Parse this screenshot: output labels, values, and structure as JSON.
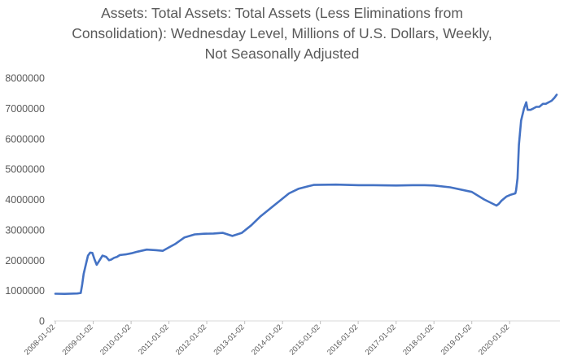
{
  "chart_data": {
    "type": "line",
    "title_lines": [
      "Assets: Total Assets: Total Assets (Less Eliminations from",
      "Consolidation): Wednesday Level, Millions of U.S. Dollars, Weekly,",
      "Not Seasonally Adjusted"
    ],
    "xlabel": "",
    "ylabel": "",
    "ylim": [
      0,
      8000000
    ],
    "y_ticks": [
      "0",
      "1000000",
      "2000000",
      "3000000",
      "4000000",
      "5000000",
      "6000000",
      "7000000",
      "8000000"
    ],
    "x_ticks": [
      "2008-01-02",
      "2009-01-02",
      "2010-01-02",
      "2011-01-02",
      "2012-01-02",
      "2013-01-02",
      "2014-01-02",
      "2015-01-02",
      "2016-01-02",
      "2017-01-02",
      "2018-01-02",
      "2019-01-02",
      "2020-01-02"
    ],
    "x_range": [
      "2008-01-02",
      "2021-03-31"
    ],
    "grid": false,
    "legend": "none",
    "line_color": "#4472C4",
    "series": [
      {
        "x": [
          "2008-01-02",
          "2008-04-01",
          "2008-08-01",
          "2008-09-03",
          "2008-09-17",
          "2008-10-01",
          "2008-10-22",
          "2008-11-12",
          "2008-12-03",
          "2008-12-24",
          "2009-01-14",
          "2009-02-04",
          "2009-03-04",
          "2009-04-01",
          "2009-05-06",
          "2009-06-03",
          "2009-06-24",
          "2009-07-22",
          "2009-08-19",
          "2009-09-16",
          "2009-10-14",
          "2009-11-11",
          "2010-01-06",
          "2010-03-03",
          "2010-06-02",
          "2010-09-01",
          "2010-11-03",
          "2011-01-05",
          "2011-03-02",
          "2011-06-01",
          "2011-09-07",
          "2011-12-07",
          "2012-03-07",
          "2012-06-06",
          "2012-09-05",
          "2012-12-05",
          "2013-03-06",
          "2013-06-05",
          "2013-09-04",
          "2013-12-04",
          "2014-03-05",
          "2014-06-04",
          "2014-09-03",
          "2014-10-29",
          "2015-06-03",
          "2016-01-06",
          "2016-06-01",
          "2017-01-04",
          "2017-06-07",
          "2017-10-04",
          "2018-01-03",
          "2018-06-06",
          "2019-01-02",
          "2019-05-01",
          "2019-08-28",
          "2019-09-18",
          "2019-10-16",
          "2019-12-04",
          "2020-01-08",
          "2020-02-26",
          "2020-03-04",
          "2020-03-18",
          "2020-04-01",
          "2020-04-22",
          "2020-05-20",
          "2020-06-10",
          "2020-06-24",
          "2020-07-22",
          "2020-08-19",
          "2020-09-16",
          "2020-10-14",
          "2020-11-18",
          "2020-12-16",
          "2021-01-13",
          "2021-02-10",
          "2021-03-10",
          "2021-03-31"
        ],
        "values": [
          895000,
          890000,
          905000,
          920000,
          1200000,
          1550000,
          1850000,
          2150000,
          2250000,
          2240000,
          2030000,
          1850000,
          2000000,
          2150000,
          2110000,
          2000000,
          2020000,
          2080000,
          2110000,
          2170000,
          2180000,
          2190000,
          2230000,
          2280000,
          2350000,
          2330000,
          2310000,
          2430000,
          2530000,
          2750000,
          2850000,
          2870000,
          2880000,
          2900000,
          2800000,
          2900000,
          3150000,
          3450000,
          3700000,
          3950000,
          4200000,
          4350000,
          4430000,
          4480000,
          4490000,
          4470000,
          4470000,
          4460000,
          4470000,
          4470000,
          4460000,
          4400000,
          4250000,
          4000000,
          3800000,
          3850000,
          3960000,
          4100000,
          4150000,
          4200000,
          4300000,
          4700000,
          5800000,
          6600000,
          7000000,
          7200000,
          6950000,
          6950000,
          7000000,
          7050000,
          7050000,
          7150000,
          7150000,
          7200000,
          7250000,
          7350000,
          7450000
        ]
      }
    ]
  }
}
